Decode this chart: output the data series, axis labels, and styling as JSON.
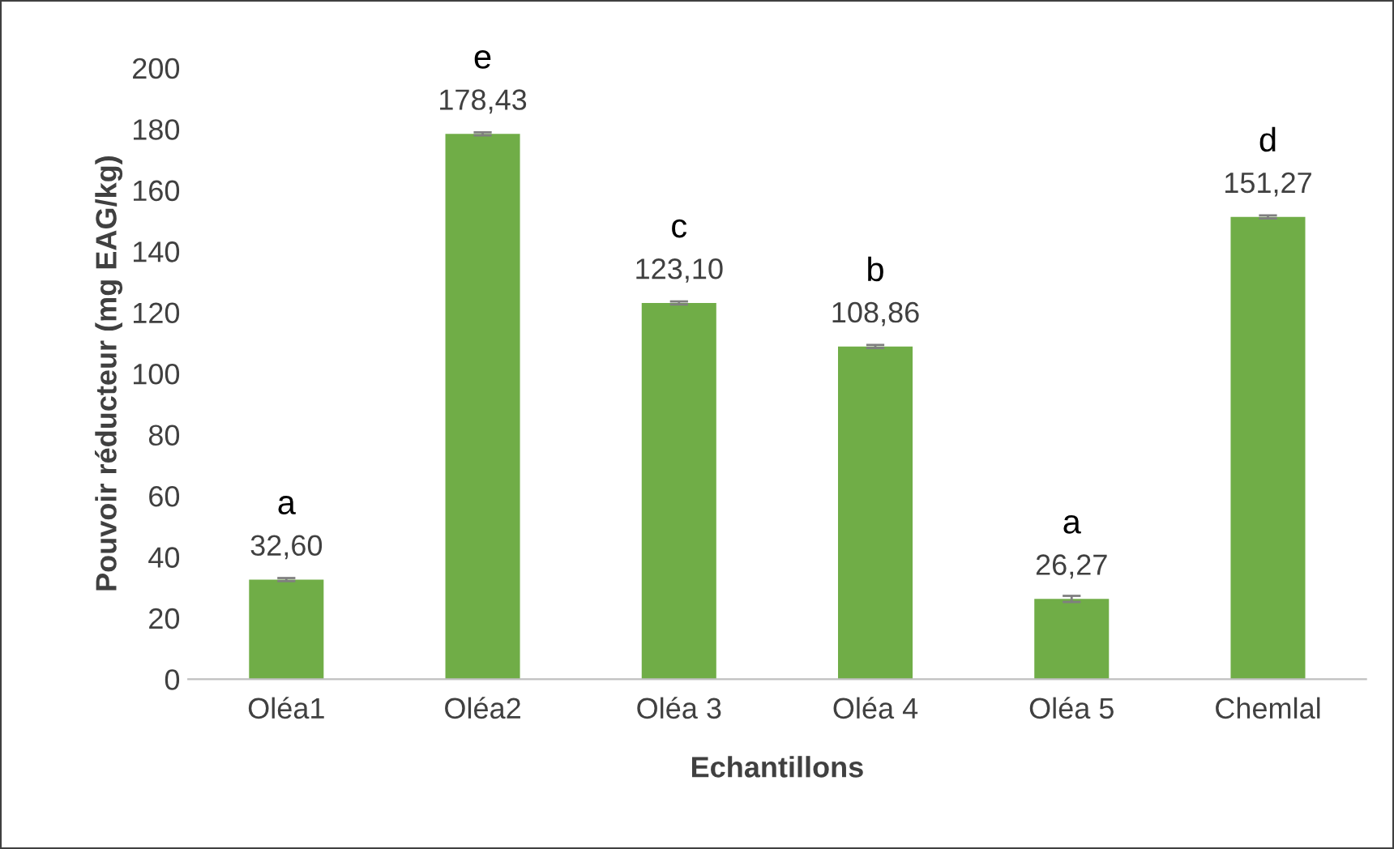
{
  "chart_data": {
    "type": "bar",
    "xlabel": "Echantillons",
    "ylabel": "Pouvoir réducteur (mg EAG/kg)",
    "categories": [
      "Oléa1",
      "Oléa2",
      "Oléa 3",
      "Oléa 4",
      "Oléa 5",
      "Chemlal"
    ],
    "values": [
      32.6,
      178.43,
      123.1,
      108.86,
      26.27,
      151.27
    ],
    "value_labels": [
      "32,60",
      "178,43",
      "123,10",
      "108,86",
      "26,27",
      "151,27"
    ],
    "errors": [
      0.5,
      0.5,
      0.5,
      0.5,
      1,
      0.5
    ],
    "color": "#70ad47",
    "ylim": [
      0,
      200
    ],
    "yticks": [
      0,
      20,
      40,
      60,
      80,
      100,
      120,
      140,
      160,
      180,
      200
    ],
    "grid": false,
    "annotations": [
      "a",
      "e",
      "c",
      "b",
      "a",
      "d"
    ]
  }
}
